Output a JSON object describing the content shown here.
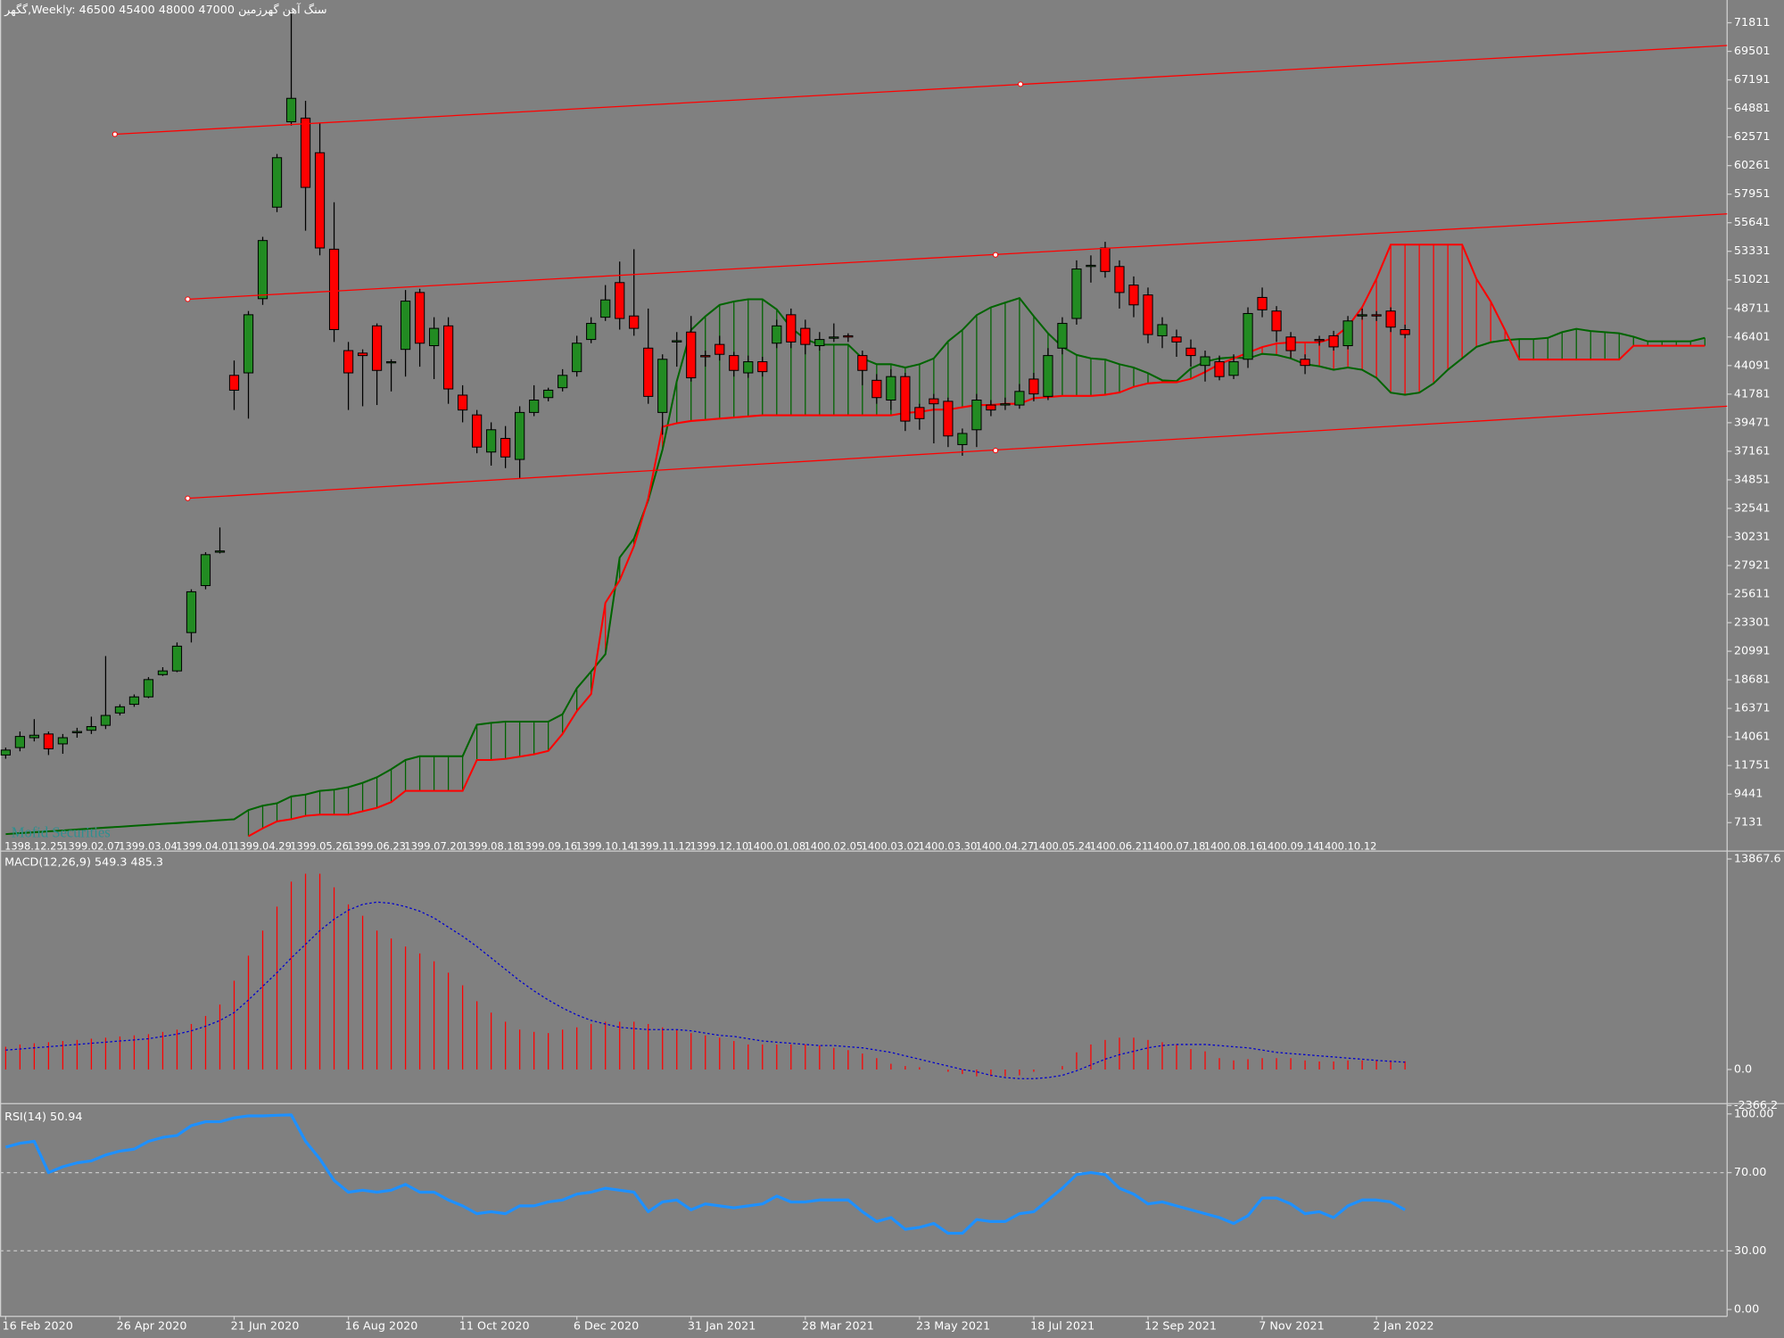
{
  "chart_data": [
    {
      "type": "candlestick",
      "title": "گگهر,Weekly:  46500 45400 48000 47000  سنگ آهن گهرزمین",
      "watermark": "Mofid Securities",
      "categories": [
        "1398.12.25",
        null,
        null,
        null,
        "1399.02.07",
        null,
        null,
        null,
        "1399.03.04",
        null,
        null,
        null,
        "1399.04.01",
        null,
        null,
        null,
        "1399.04.29",
        null,
        null,
        null,
        "1399.05.26",
        null,
        null,
        null,
        "1399.06.23",
        null,
        null,
        null,
        "1399.07.20",
        null,
        null,
        null,
        "1399.08.18",
        null,
        null,
        null,
        "1399.09.16",
        null,
        null,
        null,
        "1399.10.14",
        null,
        null,
        null,
        "1399.11.12",
        null,
        null,
        null,
        "1399.12.10",
        null,
        null,
        null,
        "1400.01.08",
        null,
        null,
        null,
        "1400.02.05",
        null,
        null,
        null,
        "1400.03.02",
        null,
        null,
        null,
        "1400.03.30",
        null,
        null,
        null,
        "1400.04.27",
        null,
        null,
        null,
        "1400.05.24",
        null,
        null,
        null,
        "1400.06.21",
        null,
        null,
        null,
        "1400.07.18",
        null,
        null,
        null,
        "1400.08.16",
        null,
        null,
        null,
        "1400.09.14",
        null,
        null,
        null,
        "1400.10.12",
        null,
        null,
        null,
        null,
        null,
        null,
        null,
        null,
        null,
        null,
        null,
        null,
        null,
        null,
        null,
        null,
        null,
        null,
        null,
        null,
        null,
        null,
        null,
        null,
        null,
        null,
        null
      ],
      "open": [
        12600,
        13200,
        14000,
        14300,
        13500,
        14400,
        14600,
        15000,
        16000,
        16700,
        17300,
        19100,
        19400,
        22500,
        26300,
        29000,
        43300,
        43500,
        49500,
        56900,
        63800,
        64100,
        61300,
        53500,
        45300,
        45100,
        47300,
        44400,
        45400,
        50000,
        45700,
        47300,
        41700,
        40100,
        37100,
        38200,
        36500,
        40300,
        41500,
        42300,
        43600,
        46200,
        48000,
        50800,
        48100,
        45500,
        40300,
        46000,
        46800,
        44900,
        45800,
        44900,
        43500,
        44400,
        45900,
        48200,
        47100,
        45700,
        46300,
        46500,
        44900,
        42900,
        41300,
        43200,
        40700,
        41400,
        41200,
        37700,
        38900,
        40900,
        40900,
        40900,
        43000,
        41600,
        45500,
        47900,
        52100,
        53600,
        52100,
        50600,
        49800,
        46500,
        46400,
        45500,
        44100,
        44400,
        43300,
        44600,
        49600,
        48500,
        46400,
        44600,
        46200,
        46500,
        45700,
        48100,
        48200,
        48500,
        47000,
        null,
        null,
        null,
        null,
        null,
        null,
        null,
        null,
        null,
        null,
        null,
        null,
        null,
        null,
        null,
        null,
        null,
        null,
        null,
        null,
        null
      ],
      "high": [
        13200,
        14500,
        15500,
        14500,
        14300,
        14800,
        15700,
        20600,
        16700,
        17500,
        18900,
        19700,
        21700,
        26000,
        29000,
        31000,
        44500,
        48500,
        54500,
        61200,
        72700,
        65500,
        63700,
        57300,
        46000,
        45400,
        47500,
        44600,
        50200,
        50300,
        48000,
        48000,
        42500,
        40500,
        39500,
        39200,
        40800,
        42500,
        42300,
        43800,
        46500,
        48000,
        50600,
        52500,
        53500,
        48700,
        45000,
        46800,
        48100,
        45300,
        46500,
        45200,
        44900,
        44800,
        47800,
        48700,
        47800,
        46800,
        47500,
        46700,
        45300,
        43400,
        43800,
        43500,
        41000,
        41800,
        41500,
        39000,
        41800,
        41300,
        41500,
        42600,
        43500,
        45500,
        48000,
        52600,
        53000,
        54100,
        52600,
        51300,
        50400,
        48000,
        47000,
        46200,
        45300,
        44900,
        45000,
        48800,
        50400,
        48900,
        46800,
        45000,
        46500,
        46900,
        48100,
        48700,
        48500,
        48800,
        47400,
        null,
        null,
        null,
        null,
        null,
        null,
        null,
        null,
        null,
        null,
        null,
        null,
        null,
        null,
        null,
        null,
        null,
        null,
        null,
        null,
        null
      ],
      "low": [
        12300,
        12900,
        13700,
        12600,
        12700,
        14000,
        14300,
        14700,
        15800,
        16500,
        17200,
        19000,
        19300,
        21700,
        26000,
        28900,
        40500,
        39800,
        49000,
        56500,
        63500,
        55000,
        53000,
        46000,
        40500,
        40800,
        40900,
        42000,
        43200,
        44000,
        43000,
        41000,
        39500,
        37000,
        36000,
        35800,
        35000,
        40000,
        41200,
        42000,
        43200,
        45900,
        47700,
        47000,
        46500,
        41000,
        38500,
        44000,
        42800,
        44000,
        44500,
        43200,
        43100,
        43200,
        45500,
        45500,
        45000,
        45300,
        46000,
        46000,
        42500,
        41000,
        40500,
        38800,
        38900,
        37800,
        37500,
        36800,
        37500,
        40000,
        40500,
        40600,
        41200,
        41300,
        45000,
        47400,
        50800,
        51200,
        48700,
        48000,
        45900,
        45500,
        44800,
        44000,
        42800,
        42900,
        43000,
        43900,
        48000,
        46000,
        44700,
        43400,
        45700,
        45300,
        45400,
        47800,
        47700,
        46800,
        46300,
        null,
        null,
        null,
        null,
        null,
        null,
        null,
        null,
        null,
        null,
        null,
        null,
        null,
        null,
        null,
        null,
        null,
        null,
        null,
        null,
        null
      ],
      "close": [
        13000,
        14100,
        14200,
        13100,
        14000,
        14500,
        14900,
        15800,
        16500,
        17300,
        18700,
        19400,
        21400,
        25800,
        28800,
        29100,
        42100,
        48200,
        54200,
        60900,
        65700,
        58500,
        53600,
        47000,
        43500,
        44900,
        43700,
        44400,
        49300,
        45900,
        47100,
        42200,
        40500,
        37500,
        38900,
        36700,
        40300,
        41300,
        42100,
        43300,
        45900,
        47500,
        49400,
        47900,
        47100,
        41600,
        44600,
        46100,
        43100,
        44800,
        45000,
        43700,
        44400,
        43600,
        47300,
        46000,
        45800,
        46200,
        46400,
        46400,
        43700,
        41500,
        43200,
        39600,
        39800,
        41000,
        38400,
        38600,
        41300,
        40500,
        41000,
        42000,
        41800,
        44900,
        47500,
        51900,
        52200,
        51700,
        50000,
        49000,
        46600,
        47400,
        46000,
        44900,
        44800,
        43200,
        44400,
        48300,
        48600,
        46900,
        45300,
        44100,
        46100,
        45600,
        47700,
        48200,
        48100,
        47200,
        46600,
        null,
        null,
        null,
        null,
        null,
        null,
        null,
        null,
        null,
        null,
        null,
        null,
        null,
        null,
        null,
        null,
        null,
        null,
        null,
        null,
        null
      ],
      "up_color": "#228b22",
      "down_color": "#ff0000",
      "senkou_a": [
        6200,
        6280,
        6350,
        6430,
        6500,
        6580,
        6650,
        6730,
        6800,
        6880,
        6950,
        7030,
        7100,
        7180,
        7250,
        7330,
        7400,
        8150,
        8500,
        8700,
        9250,
        9400,
        9700,
        9800,
        10000,
        10350,
        10800,
        11450,
        12200,
        12500,
        12500,
        12500,
        12500,
        15050,
        15200,
        15300,
        15300,
        15300,
        15300,
        15900,
        18000,
        19350,
        20750,
        28570,
        30100,
        33200,
        37300,
        42830,
        46970,
        48070,
        49000,
        49270,
        49450,
        49450,
        48630,
        47150,
        46230,
        45780,
        45780,
        45780,
        44670,
        44200,
        44200,
        43930,
        44200,
        44670,
        46050,
        46970,
        48170,
        48800,
        49180,
        49550,
        48080,
        46700,
        45600,
        44950,
        44670,
        44580,
        44200,
        43930,
        43480,
        42900,
        42830,
        43850,
        44400,
        44670,
        44760,
        44670,
        45040,
        44950,
        44670,
        44200,
        44030,
        43750,
        43930,
        43750,
        43100,
        41900,
        41730,
        41900,
        42650,
        43750,
        44670,
        45600,
        45970,
        46140,
        46230,
        46230,
        46330,
        46790,
        47060,
        46880,
        46790,
        46700,
        46420,
        46050,
        46050,
        46050,
        46050,
        46330
      ],
      "senkou_b": [
        null,
        null,
        null,
        null,
        null,
        null,
        null,
        null,
        null,
        null,
        null,
        null,
        null,
        null,
        null,
        null,
        null,
        6030,
        6670,
        7230,
        7410,
        7680,
        7780,
        7780,
        7780,
        8050,
        8330,
        8790,
        9700,
        9700,
        9700,
        9700,
        9700,
        12200,
        12200,
        12290,
        12470,
        12660,
        12930,
        14310,
        16150,
        17530,
        24900,
        26730,
        29500,
        33350,
        39150,
        39430,
        39610,
        39700,
        39800,
        39890,
        39980,
        40070,
        40070,
        40070,
        40070,
        40070,
        40070,
        40070,
        40070,
        40070,
        40070,
        40260,
        40350,
        40530,
        40530,
        40720,
        40900,
        40900,
        41000,
        41000,
        41450,
        41540,
        41640,
        41640,
        41640,
        41730,
        41910,
        42370,
        42650,
        42740,
        42740,
        43020,
        43570,
        44210,
        44670,
        45130,
        45590,
        45870,
        45960,
        45960,
        45960,
        46330,
        47250,
        48810,
        51110,
        53870,
        53870,
        53870,
        53870,
        53870,
        53870,
        51110,
        49270,
        46970,
        44580,
        44580,
        44580,
        44580,
        44580,
        44580,
        44580,
        44580,
        45690,
        45690,
        45690,
        45690,
        45690,
        45690
      ],
      "senkou_a_color": "#006400",
      "senkou_b_color": "#ff0000",
      "ylim": [
        4835,
        73651
      ],
      "yticks": [
        71811,
        69501,
        67191,
        64881,
        62571,
        60261,
        57951,
        55641,
        53331,
        51021,
        48711,
        46401,
        44091,
        41781,
        39471,
        37161,
        34851,
        32541,
        30231,
        27921,
        25611,
        23301,
        20991,
        18681,
        16371,
        14061,
        11751,
        9441,
        7131
      ]
    },
    {
      "type": "macd",
      "title": "MACD(12,26,9) 549.3 485.3",
      "values": [
        1500,
        1650,
        1730,
        1800,
        1880,
        1950,
        2030,
        2100,
        2180,
        2250,
        2330,
        2480,
        2630,
        3000,
        3530,
        4280,
        5850,
        7500,
        9150,
        10730,
        12380,
        12900,
        12900,
        12000,
        10880,
        10130,
        9150,
        8630,
        8100,
        7650,
        7130,
        6380,
        5550,
        4500,
        3750,
        3150,
        2630,
        2480,
        2400,
        2630,
        2780,
        3000,
        3150,
        3150,
        3150,
        3000,
        2780,
        2630,
        2400,
        2250,
        2100,
        1880,
        1650,
        1650,
        1650,
        1650,
        1650,
        1580,
        1430,
        1280,
        1050,
        750,
        380,
        230,
        150,
        0,
        -150,
        -300,
        -450,
        -450,
        -450,
        -380,
        -150,
        0,
        230,
        1130,
        1650,
        1950,
        2100,
        2100,
        1950,
        1800,
        1650,
        1350,
        1200,
        750,
        600,
        680,
        750,
        750,
        750,
        600,
        530,
        530,
        600,
        600,
        600,
        600,
        549.3
      ],
      "signal": [
        1280,
        1350,
        1430,
        1500,
        1580,
        1650,
        1730,
        1800,
        1880,
        1950,
        2030,
        2180,
        2330,
        2550,
        2850,
        3230,
        3750,
        4580,
        5480,
        6380,
        7350,
        8250,
        9150,
        9900,
        10500,
        10880,
        11030,
        10950,
        10730,
        10430,
        9980,
        9380,
        8780,
        8100,
        7350,
        6600,
        5850,
        5180,
        4580,
        4050,
        3600,
        3230,
        3000,
        2780,
        2700,
        2630,
        2630,
        2630,
        2550,
        2400,
        2250,
        2180,
        2030,
        1880,
        1800,
        1730,
        1650,
        1580,
        1580,
        1500,
        1430,
        1280,
        1130,
        900,
        680,
        450,
        230,
        0,
        -150,
        -380,
        -530,
        -600,
        -600,
        -530,
        -380,
        -80,
        300,
        680,
        980,
        1200,
        1430,
        1580,
        1650,
        1650,
        1650,
        1580,
        1500,
        1430,
        1280,
        1130,
        1050,
        980,
        900,
        830,
        750,
        680,
        600,
        540,
        485.3
      ],
      "color": "#ff0000",
      "signal_color": "#0000cd",
      "ylim": [
        -2366.2,
        13867.6
      ],
      "yticks": [
        13867.6,
        {
          "value": 0,
          "label": "0.0"
        },
        -2366.2
      ]
    },
    {
      "type": "line",
      "title": "RSI(14) 50.94",
      "categories": [
        "16 Feb 2020",
        null,
        null,
        null,
        null,
        null,
        null,
        null,
        "26 Apr 2020",
        null,
        null,
        null,
        null,
        null,
        null,
        null,
        "21 Jun 2020",
        null,
        null,
        null,
        null,
        null,
        null,
        null,
        "16 Aug 2020",
        null,
        null,
        null,
        null,
        null,
        null,
        null,
        "11 Oct 2020",
        null,
        null,
        null,
        null,
        null,
        null,
        null,
        "6 Dec 2020",
        null,
        null,
        null,
        null,
        null,
        null,
        null,
        "31 Jan 2021",
        null,
        null,
        null,
        null,
        null,
        null,
        null,
        "28 Mar 2021",
        null,
        null,
        null,
        null,
        null,
        null,
        null,
        "23 May 2021",
        null,
        null,
        null,
        null,
        null,
        null,
        null,
        "18 Jul 2021",
        null,
        null,
        null,
        null,
        null,
        null,
        null,
        "12 Sep 2021",
        null,
        null,
        null,
        null,
        null,
        null,
        null,
        "7 Nov 2021",
        null,
        null,
        null,
        null,
        null,
        null,
        null,
        "2 Jan 2022",
        null,
        null
      ],
      "values": [
        83,
        85,
        86,
        70,
        73,
        75,
        76,
        79,
        81,
        82,
        86,
        88,
        89,
        94,
        96,
        96,
        98,
        99,
        99,
        99.3,
        99.5,
        86,
        77,
        66,
        60,
        61,
        60,
        61,
        64,
        60,
        60,
        56,
        53,
        49,
        50,
        49,
        53,
        53,
        55,
        56,
        59,
        60,
        62,
        61,
        60,
        50,
        55,
        56,
        51,
        54,
        53,
        52,
        53,
        54,
        58,
        55,
        55,
        56,
        56,
        56,
        50,
        45,
        47,
        41,
        42,
        44,
        39,
        39,
        46,
        45,
        45,
        49,
        50,
        56,
        62,
        69,
        70,
        69,
        62,
        59,
        54,
        55,
        53,
        51,
        49,
        47,
        44,
        48,
        57,
        57,
        54,
        49,
        50,
        47,
        53,
        56,
        56,
        55,
        50.94
      ],
      "color": "#1e90ff",
      "levels": [
        70,
        30
      ],
      "ylim": [
        -3.5,
        104.1
      ],
      "yticks": [
        {
          "value": 100,
          "label": "100.00"
        },
        {
          "value": 70,
          "label": "70.00"
        },
        {
          "value": 30,
          "label": "30.00"
        },
        {
          "value": 0,
          "label": "0.00"
        }
      ]
    }
  ]
}
